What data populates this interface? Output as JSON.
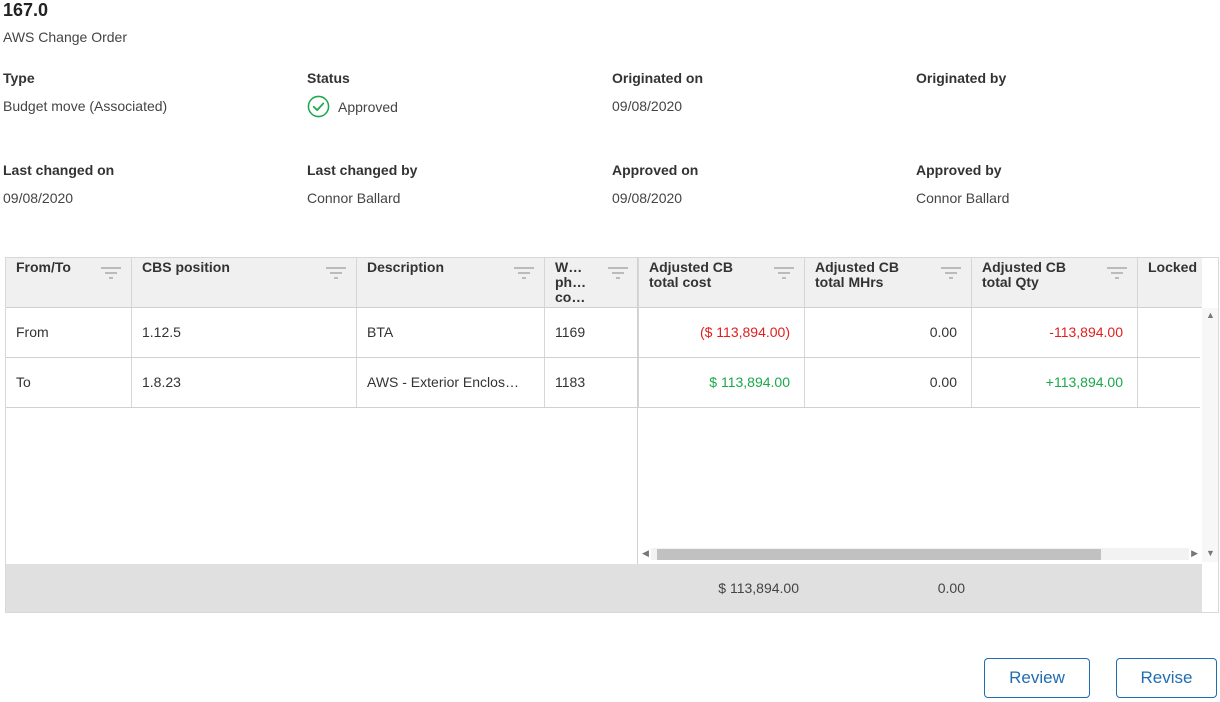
{
  "record": {
    "number": "167.0",
    "title": "AWS Change Order"
  },
  "fields": {
    "type": {
      "label": "Type",
      "value": "Budget move (Associated)"
    },
    "status": {
      "label": "Status",
      "value": "Approved"
    },
    "originated_on": {
      "label": "Originated on",
      "value": "09/08/2020"
    },
    "originated_by": {
      "label": "Originated by",
      "value": ""
    },
    "last_changed_on": {
      "label": "Last changed on",
      "value": "09/08/2020"
    },
    "last_changed_by": {
      "label": "Last changed by",
      "value": "Connor Ballard"
    },
    "approved_on": {
      "label": "Approved on",
      "value": "09/08/2020"
    },
    "approved_by": {
      "label": "Approved by",
      "value": "Connor Ballard"
    }
  },
  "table": {
    "headers": [
      "From/To",
      "CBS position",
      "Description",
      "W… ph… co…",
      "Adjusted CB total cost",
      "Adjusted CB total MHrs",
      "Adjusted CB total Qty",
      "Locked"
    ],
    "rows": [
      {
        "from_to": "From",
        "cbs": "1.12.5",
        "description": "BTA",
        "wbs": "1169",
        "cost": "($ 113,894.00)",
        "mhrs": "0.00",
        "qty": "-113,894.00"
      },
      {
        "from_to": "To",
        "cbs": "1.8.23",
        "description": "AWS - Exterior Enclos…",
        "wbs": "1183",
        "cost": "$ 113,894.00",
        "mhrs": "0.00",
        "qty": "+113,894.00"
      }
    ],
    "totals": {
      "cost": "$ 113,894.00",
      "mhrs": "0.00"
    }
  },
  "buttons": {
    "review": "Review",
    "revise": "Revise"
  },
  "colors": {
    "positive": "#1aa84a",
    "negative": "#e02020",
    "accent": "#1f6db3"
  }
}
